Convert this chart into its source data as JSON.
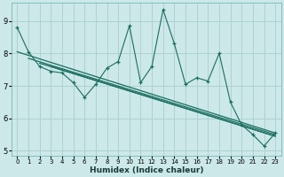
{
  "xlabel": "Humidex (Indice chaleur)",
  "bg_color": "#cce8e8",
  "grid_color": "#aacece",
  "line_color": "#1a6e60",
  "x_data": [
    0,
    1,
    2,
    3,
    4,
    5,
    6,
    7,
    8,
    9,
    10,
    11,
    12,
    13,
    14,
    15,
    16,
    17,
    18,
    19,
    20,
    21,
    22,
    23
  ],
  "y_main": [
    8.8,
    8.05,
    7.6,
    7.45,
    7.4,
    7.1,
    6.65,
    7.05,
    7.55,
    7.75,
    8.85,
    7.1,
    7.6,
    9.35,
    8.3,
    7.05,
    7.25,
    7.15,
    8.0,
    6.5,
    5.8,
    5.5,
    5.15,
    5.55
  ],
  "reg_lines": [
    {
      "x_start": 0,
      "x_end": 23,
      "y_start": 8.05,
      "y_end": 5.55
    },
    {
      "x_start": 1,
      "x_end": 23,
      "y_start": 7.85,
      "y_end": 5.5
    },
    {
      "x_start": 2,
      "x_end": 23,
      "y_start": 7.7,
      "y_end": 5.45
    },
    {
      "x_start": 3,
      "x_end": 23,
      "y_start": 7.6,
      "y_end": 5.45
    }
  ],
  "ylim": [
    4.85,
    9.55
  ],
  "xlim": [
    -0.5,
    23.5
  ],
  "yticks": [
    5,
    6,
    7,
    8,
    9
  ],
  "xticks": [
    0,
    1,
    2,
    3,
    4,
    5,
    6,
    7,
    8,
    9,
    10,
    11,
    12,
    13,
    14,
    15,
    16,
    17,
    18,
    19,
    20,
    21,
    22,
    23
  ]
}
